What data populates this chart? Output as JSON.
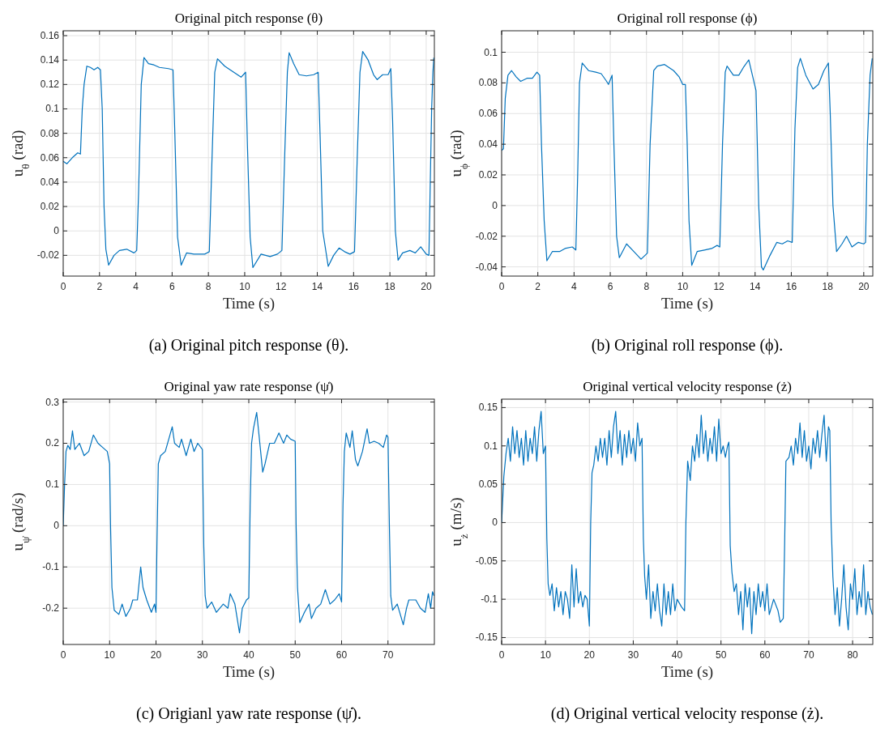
{
  "chart_data": [
    {
      "type": "line",
      "title": "Original pitch response (θ)",
      "xlabel": "Time (s)",
      "ylabel": "u$_{θ}$ (rad)",
      "annotations": [
        "(a) Original pitch response (θ)."
      ],
      "grid": true,
      "xlim": [
        0,
        20.45
      ],
      "ylim": [
        -0.037,
        0.164
      ],
      "xticks": [
        0,
        2,
        4,
        6,
        8,
        10,
        12,
        14,
        16,
        18,
        20
      ],
      "yticks": [
        -0.02,
        0,
        0.02,
        0.04,
        0.06,
        0.08,
        0.1,
        0.12,
        0.14,
        0.16
      ],
      "x": [
        0,
        0.2,
        0.5,
        0.8,
        0.95,
        1.05,
        1.15,
        1.3,
        1.5,
        1.7,
        1.9,
        2.05,
        2.15,
        2.25,
        2.35,
        2.5,
        2.8,
        3.1,
        3.5,
        3.9,
        4.05,
        4.15,
        4.3,
        4.45,
        4.7,
        5.0,
        5.3,
        5.8,
        6.05,
        6.15,
        6.3,
        6.5,
        6.8,
        7.2,
        7.8,
        8.05,
        8.2,
        8.35,
        8.5,
        8.9,
        9.3,
        9.8,
        10.05,
        10.15,
        10.3,
        10.45,
        10.9,
        11.4,
        11.8,
        12.05,
        12.2,
        12.35,
        12.45,
        12.7,
        13.0,
        13.4,
        13.8,
        14.05,
        14.15,
        14.3,
        14.6,
        14.9,
        15.2,
        15.5,
        15.8,
        16.05,
        16.2,
        16.35,
        16.5,
        16.8,
        17.1,
        17.3,
        17.6,
        17.9,
        18.05,
        18.15,
        18.3,
        18.45,
        18.7,
        19.1,
        19.4,
        19.7,
        20.0,
        20.15,
        20.25,
        20.3,
        20.37,
        20.42
      ],
      "series": [
        {
          "color": "#0072bd",
          "values": [
            0.057,
            0.055,
            0.06,
            0.064,
            0.063,
            0.1,
            0.12,
            0.135,
            0.134,
            0.132,
            0.134,
            0.132,
            0.1,
            0.02,
            -0.015,
            -0.028,
            -0.02,
            -0.016,
            -0.015,
            -0.018,
            -0.016,
            0.03,
            0.12,
            0.142,
            0.137,
            0.136,
            0.134,
            0.133,
            0.132,
            0.08,
            -0.005,
            -0.028,
            -0.018,
            -0.019,
            -0.019,
            -0.017,
            0.06,
            0.13,
            0.141,
            0.135,
            0.131,
            0.126,
            0.13,
            0.07,
            -0.005,
            -0.03,
            -0.019,
            -0.021,
            -0.019,
            -0.016,
            0.06,
            0.13,
            0.146,
            0.137,
            0.128,
            0.127,
            0.128,
            0.13,
            0.08,
            0.0,
            -0.029,
            -0.02,
            -0.014,
            -0.017,
            -0.019,
            -0.017,
            0.06,
            0.13,
            0.147,
            0.14,
            0.128,
            0.124,
            0.128,
            0.128,
            0.133,
            0.09,
            0.0,
            -0.024,
            -0.018,
            -0.016,
            -0.018,
            -0.013,
            -0.019,
            -0.02,
            0.06,
            0.1,
            0.13,
            0.142
          ]
        }
      ]
    },
    {
      "type": "line",
      "title": "Original roll response (ϕ)",
      "xlabel": "Time (s)",
      "ylabel": "u$_{ϕ}$ (rad)",
      "annotations": [
        "(b) Original roll response (ϕ)."
      ],
      "grid": true,
      "xlim": [
        0,
        20.5
      ],
      "ylim": [
        -0.046,
        0.114
      ],
      "xticks": [
        0,
        2,
        4,
        6,
        8,
        10,
        12,
        14,
        16,
        18,
        20
      ],
      "yticks": [
        -0.04,
        -0.02,
        0,
        0.02,
        0.04,
        0.06,
        0.08,
        0.1
      ],
      "x": [
        0,
        0.1,
        0.2,
        0.35,
        0.55,
        0.8,
        1.05,
        1.4,
        1.7,
        1.95,
        2.1,
        2.2,
        2.35,
        2.5,
        2.8,
        3.2,
        3.5,
        3.9,
        4.1,
        4.2,
        4.3,
        4.45,
        4.8,
        5.2,
        5.5,
        5.8,
        5.9,
        6.1,
        6.2,
        6.35,
        6.5,
        6.9,
        7.3,
        7.7,
        8.05,
        8.2,
        8.4,
        8.6,
        9.0,
        9.5,
        9.8,
        10.0,
        10.15,
        10.25,
        10.35,
        10.5,
        10.8,
        11.2,
        11.6,
        11.9,
        12.05,
        12.2,
        12.35,
        12.45,
        12.8,
        13.1,
        13.35,
        13.65,
        14.05,
        14.2,
        14.35,
        14.45,
        14.8,
        15.2,
        15.5,
        15.8,
        16.05,
        16.2,
        16.35,
        16.5,
        16.8,
        17.2,
        17.5,
        17.8,
        18.05,
        18.15,
        18.3,
        18.5,
        18.8,
        19.05,
        19.35,
        19.7,
        20.0,
        20.1,
        20.2,
        20.35,
        20.47
      ],
      "series": [
        {
          "color": "#0072bd",
          "values": [
            0.036,
            0.037,
            0.07,
            0.085,
            0.088,
            0.084,
            0.081,
            0.083,
            0.083,
            0.087,
            0.085,
            0.04,
            -0.01,
            -0.036,
            -0.03,
            -0.03,
            -0.028,
            -0.027,
            -0.029,
            0.02,
            0.08,
            0.093,
            0.088,
            0.087,
            0.086,
            0.081,
            0.079,
            0.085,
            0.04,
            -0.02,
            -0.034,
            -0.025,
            -0.03,
            -0.035,
            -0.031,
            0.04,
            0.088,
            0.091,
            0.092,
            0.088,
            0.084,
            0.079,
            0.079,
            0.04,
            -0.01,
            -0.039,
            -0.03,
            -0.029,
            -0.028,
            -0.026,
            -0.027,
            0.04,
            0.087,
            0.091,
            0.085,
            0.085,
            0.09,
            0.095,
            0.075,
            0.0,
            -0.04,
            -0.042,
            -0.033,
            -0.024,
            -0.025,
            -0.023,
            -0.024,
            0.05,
            0.09,
            0.096,
            0.085,
            0.076,
            0.079,
            0.088,
            0.093,
            0.06,
            0.0,
            -0.03,
            -0.025,
            -0.02,
            -0.027,
            -0.024,
            -0.025,
            -0.024,
            0.04,
            0.085,
            0.096
          ]
        }
      ]
    },
    {
      "type": "line",
      "title": "Original yaw rate response (ψ̇)",
      "xlabel": "Time (s)",
      "ylabel": "u$_{ψ̇}$ (rad/s)",
      "annotations": [
        "(c) Origianl yaw rate response (ψ̇)."
      ],
      "grid": true,
      "xlim": [
        0,
        80
      ],
      "ylim": [
        -0.288,
        0.307
      ],
      "xticks": [
        0,
        10,
        20,
        30,
        40,
        50,
        60,
        70
      ],
      "yticks": [
        -0.2,
        -0.1,
        0,
        0.1,
        0.2,
        0.3
      ],
      "x": [
        0,
        0.3,
        0.6,
        1,
        1.5,
        2,
        2.5,
        3.5,
        4.5,
        5.5,
        6.5,
        7.5,
        8.5,
        9.5,
        10,
        10.2,
        10.5,
        11,
        12,
        12.7,
        13.5,
        14.5,
        15,
        16,
        16.7,
        17.2,
        18,
        19,
        19.7,
        20,
        20.2,
        20.5,
        21,
        22,
        23,
        23.5,
        24,
        25,
        25.5,
        26.5,
        27.5,
        28.2,
        29,
        30,
        30.3,
        30.6,
        31,
        32,
        33,
        34.5,
        35.5,
        36,
        37,
        38,
        38.6,
        39.5,
        40,
        40.3,
        40.6,
        41,
        41.7,
        42.2,
        43,
        43.5,
        44.5,
        45.5,
        46.5,
        47.5,
        48.2,
        49,
        50,
        50.2,
        50.5,
        51,
        52,
        53,
        53.5,
        54.5,
        55.5,
        56.5,
        57.5,
        58.5,
        59.5,
        60,
        60.3,
        60.6,
        61,
        61.8,
        62.3,
        63,
        63.5,
        64.5,
        65.5,
        66,
        67,
        68,
        69,
        69.7,
        70,
        70.3,
        70.6,
        71,
        72,
        73.3,
        74,
        74.5,
        76,
        77,
        78,
        78.7,
        79.2,
        79.6,
        79.9
      ],
      "series": [
        {
          "color": "#0072bd",
          "values": [
            0,
            0.1,
            0.18,
            0.195,
            0.185,
            0.23,
            0.185,
            0.2,
            0.17,
            0.18,
            0.22,
            0.2,
            0.19,
            0.18,
            0.15,
            0,
            -0.15,
            -0.205,
            -0.215,
            -0.19,
            -0.22,
            -0.2,
            -0.18,
            -0.18,
            -0.1,
            -0.15,
            -0.18,
            -0.21,
            -0.19,
            -0.21,
            -0.05,
            0.15,
            0.17,
            0.18,
            0.22,
            0.24,
            0.2,
            0.19,
            0.21,
            0.17,
            0.21,
            0.18,
            0.2,
            0.185,
            -0.05,
            -0.17,
            -0.2,
            -0.185,
            -0.21,
            -0.19,
            -0.2,
            -0.165,
            -0.19,
            -0.26,
            -0.2,
            -0.18,
            -0.175,
            0.05,
            0.2,
            0.235,
            0.275,
            0.22,
            0.13,
            0.15,
            0.2,
            0.2,
            0.225,
            0.2,
            0.22,
            0.21,
            0.205,
            0,
            -0.15,
            -0.235,
            -0.21,
            -0.19,
            -0.225,
            -0.2,
            -0.19,
            -0.155,
            -0.19,
            -0.18,
            -0.165,
            -0.185,
            0.05,
            0.18,
            0.225,
            0.19,
            0.23,
            0.16,
            0.145,
            0.18,
            0.235,
            0.2,
            0.205,
            0.2,
            0.19,
            0.22,
            0.215,
            0,
            -0.17,
            -0.205,
            -0.19,
            -0.24,
            -0.2,
            -0.18,
            -0.18,
            -0.2,
            -0.21,
            -0.165,
            -0.2,
            -0.16,
            -0.17
          ]
        }
      ]
    },
    {
      "type": "line",
      "title": "Original vertical velocity response (ż)",
      "xlabel": "Time (s)",
      "ylabel": "u$_{ż}$ (m/s)",
      "annotations": [
        "(d) Original vertical velocity response (ż)."
      ],
      "grid": true,
      "xlim": [
        0,
        84.6
      ],
      "ylim": [
        -0.159,
        0.161
      ],
      "xticks": [
        0,
        10,
        20,
        30,
        40,
        50,
        60,
        70,
        80
      ],
      "yticks": [
        -0.15,
        -0.1,
        -0.05,
        0,
        0.05,
        0.1,
        0.15
      ],
      "x": [
        0,
        0.5,
        1,
        1.5,
        2,
        2.5,
        3,
        3.5,
        4,
        4.5,
        5,
        5.5,
        6,
        6.5,
        7,
        7.5,
        8,
        8.5,
        9,
        9.5,
        10,
        10.3,
        10.6,
        11,
        11.5,
        12,
        12.5,
        13,
        13.5,
        14,
        14.5,
        15,
        15.5,
        16,
        16.5,
        17,
        17.5,
        18,
        18.5,
        19,
        19.5,
        20,
        20.3,
        20.6,
        21,
        21.5,
        22,
        22.5,
        23,
        23.5,
        24,
        24.5,
        25,
        25.5,
        26,
        26.5,
        27,
        27.5,
        28,
        28.5,
        29,
        29.5,
        30,
        30.5,
        31,
        31.5,
        32,
        32.3,
        32.6,
        33,
        33.5,
        34,
        34.5,
        35,
        35.5,
        36,
        36.5,
        37,
        37.5,
        38,
        38.5,
        39,
        39.5,
        40,
        41,
        41.7,
        42,
        42.4,
        43,
        43.5,
        44,
        44.5,
        45,
        45.5,
        46,
        46.5,
        47,
        47.5,
        48,
        48.5,
        49,
        49.5,
        50,
        50.5,
        51,
        51.5,
        51.8,
        52.1,
        52.5,
        53,
        53.5,
        54,
        54.5,
        55,
        55.5,
        56,
        56.5,
        57,
        57.5,
        58,
        58.5,
        59,
        59.5,
        60,
        60.5,
        61,
        62,
        63,
        63.5,
        64.2,
        64.5,
        64.8,
        65.5,
        66,
        66.5,
        67,
        67.5,
        68,
        68.5,
        69,
        69.5,
        70,
        70.5,
        71,
        71.5,
        72,
        72.5,
        73,
        73.5,
        74,
        74.5,
        74.8,
        75.1,
        75.5,
        76,
        76.5,
        77,
        77.5,
        78,
        78.5,
        79,
        79.5,
        80,
        80.5,
        81,
        81.5,
        82,
        82.5,
        83,
        83.5,
        84,
        84.5
      ],
      "series": [
        {
          "color": "#0072bd",
          "values": [
            0,
            0.06,
            0.09,
            0.11,
            0.08,
            0.125,
            0.09,
            0.12,
            0.085,
            0.11,
            0.075,
            0.12,
            0.08,
            0.11,
            0.09,
            0.125,
            0.08,
            0.12,
            0.145,
            0.09,
            0.1,
            -0.02,
            -0.08,
            -0.095,
            -0.08,
            -0.115,
            -0.085,
            -0.11,
            -0.09,
            -0.12,
            -0.09,
            -0.1,
            -0.125,
            -0.055,
            -0.11,
            -0.06,
            -0.105,
            -0.09,
            -0.11,
            -0.095,
            -0.1,
            -0.135,
            0.0,
            0.065,
            0.075,
            0.1,
            0.08,
            0.11,
            0.085,
            0.11,
            0.075,
            0.12,
            0.085,
            0.125,
            0.145,
            0.09,
            0.12,
            0.075,
            0.115,
            0.085,
            0.12,
            0.09,
            0.11,
            0.08,
            0.13,
            0.1,
            0.11,
            -0.02,
            -0.07,
            -0.1,
            -0.055,
            -0.125,
            -0.09,
            -0.115,
            -0.08,
            -0.115,
            -0.135,
            -0.08,
            -0.12,
            -0.09,
            -0.12,
            -0.08,
            -0.115,
            -0.1,
            -0.11,
            -0.115,
            0.0,
            0.08,
            0.055,
            0.1,
            0.08,
            0.115,
            0.085,
            0.14,
            0.09,
            0.12,
            0.08,
            0.11,
            0.09,
            0.125,
            0.08,
            0.135,
            0.09,
            0.1,
            0.085,
            0.1,
            0.105,
            -0.03,
            -0.065,
            -0.09,
            -0.08,
            -0.12,
            -0.09,
            -0.14,
            -0.08,
            -0.11,
            -0.085,
            -0.145,
            -0.09,
            -0.12,
            -0.08,
            -0.11,
            -0.09,
            -0.115,
            -0.08,
            -0.12,
            -0.1,
            -0.115,
            -0.13,
            -0.125,
            -0.03,
            0.08,
            0.085,
            0.1,
            0.075,
            0.11,
            0.09,
            0.13,
            0.085,
            0.12,
            0.08,
            0.1,
            0.07,
            0.11,
            0.09,
            0.12,
            0.085,
            0.115,
            0.14,
            0.08,
            0.125,
            0.12,
            0.0,
            -0.07,
            -0.12,
            -0.085,
            -0.135,
            -0.1,
            -0.055,
            -0.11,
            -0.14,
            -0.08,
            -0.1,
            -0.06,
            -0.12,
            -0.09,
            -0.11,
            -0.055,
            -0.12,
            -0.09,
            -0.11,
            -0.12
          ]
        }
      ]
    }
  ]
}
